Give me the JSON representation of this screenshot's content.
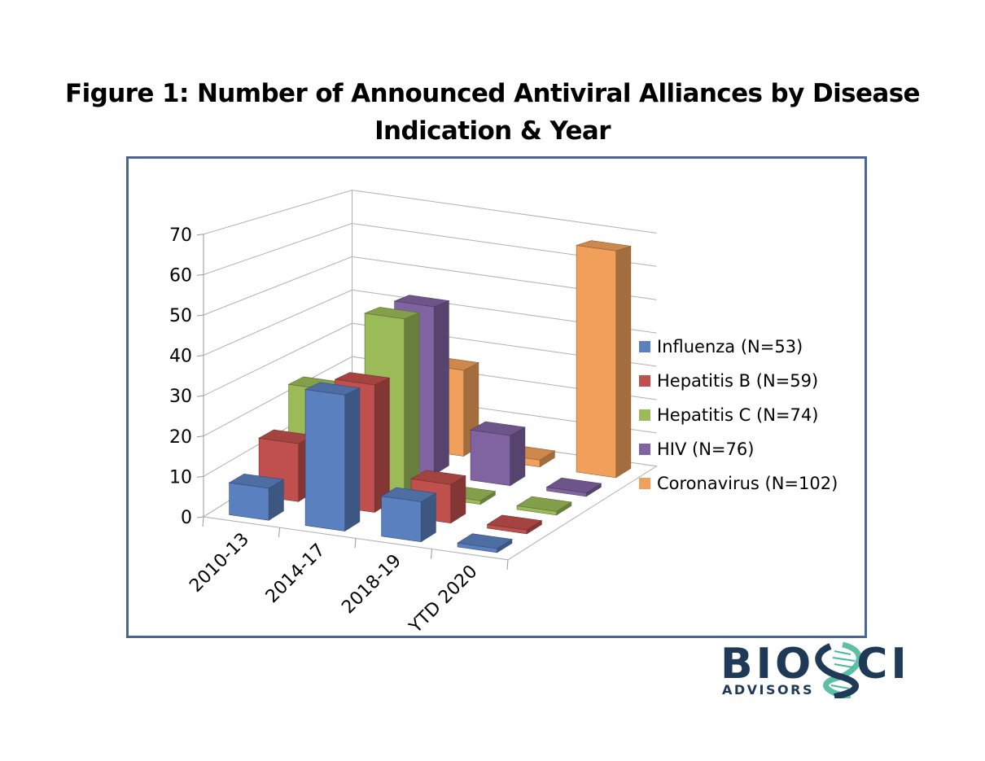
{
  "page": {
    "title_line1": "Figure 1:  Number of Announced Antiviral Alliances by Disease",
    "title_line2": "Indication & Year"
  },
  "logo": {
    "main_text": "BIOSCI",
    "sub_text": "ADVISORS",
    "primary_color": "#1f3a57",
    "accent_color": "#4cb89a"
  },
  "chart_data": {
    "type": "bar",
    "subtype": "3d-column",
    "title": "Figure 1:  Number of Announced Antiviral Alliances by Disease Indication & Year",
    "xlabel": "",
    "ylabel": "",
    "categories": [
      "2010-13",
      "2014-17",
      "2018-19",
      "YTD 2020"
    ],
    "ylim": [
      0,
      70
    ],
    "yticks": [
      0,
      10,
      20,
      30,
      40,
      50,
      60,
      70
    ],
    "grid": true,
    "legend_position": "right",
    "series": [
      {
        "name": "Influenza (N=53)",
        "color": "#5a80c0",
        "values": [
          8,
          34,
          10,
          1
        ]
      },
      {
        "name": "Hepatitis B (N=59)",
        "color": "#c0504d",
        "values": [
          15,
          33,
          10,
          1
        ]
      },
      {
        "name": "Hepatitis C (N=74)",
        "color": "#9bbb59",
        "values": [
          25,
          47,
          1,
          1
        ]
      },
      {
        "name": "HIV (N=76)",
        "color": "#8064a2",
        "values": [
          14,
          47,
          14,
          1
        ]
      },
      {
        "name": "Coronavirus (N=102)",
        "color": "#f0a05a",
        "values": [
          9,
          25,
          2,
          66
        ]
      }
    ]
  }
}
